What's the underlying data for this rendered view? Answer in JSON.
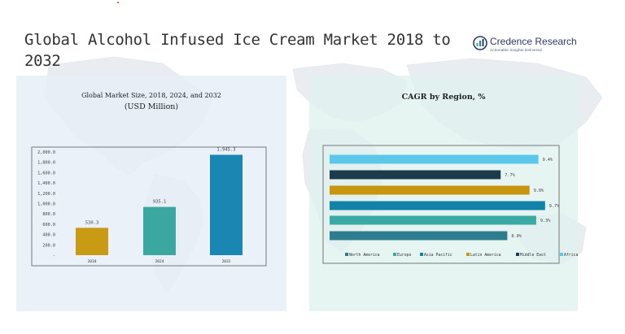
{
  "page": {
    "title": "Global Alcohol Infused Ice Cream Market 2018 to 2032"
  },
  "brand": {
    "name": "Credence Research",
    "tagline": "Actionable Insights Delivered",
    "color": "#2b3a67"
  },
  "chart_data": [
    {
      "type": "bar",
      "title": "Global Market Size, 2018, 2024, and 2032",
      "subtitle": "(USD Million)",
      "categories": [
        "2018",
        "2024",
        "2032"
      ],
      "values": [
        530.3,
        935.1,
        1945.3
      ],
      "value_labels": [
        "530.3",
        "935.1",
        "1,945.3"
      ],
      "colors": [
        "#c99a14",
        "#3aa8a0",
        "#1a87b2"
      ],
      "y_ticks": [
        "-",
        "200.0",
        "400.0",
        "600.0",
        "800.0",
        "1,000.0",
        "1,200.0",
        "1,400.0",
        "1,600.0",
        "1,800.0",
        "2,000.0"
      ],
      "ylim": [
        0,
        2000
      ],
      "grid": false,
      "xlabel": "",
      "ylabel": ""
    },
    {
      "type": "bar",
      "orientation": "horizontal",
      "title": "CAGR by Region, %",
      "categories": [
        "Africa",
        "Middle East",
        "Latin America",
        "Asia Pacific",
        "Europe",
        "North America"
      ],
      "values": [
        9.4,
        7.7,
        9.0,
        9.7,
        9.3,
        8.0
      ],
      "value_labels": [
        "9.4%",
        "7.7%",
        "9.0%",
        "9.7%",
        "9.3%",
        "8.0%"
      ],
      "colors": [
        "#5bc8ea",
        "#1c3c4c",
        "#c7950e",
        "#1282a8",
        "#3aaba4",
        "#2e7d8e"
      ],
      "legend": {
        "position": "bottom",
        "items": [
          "North America",
          "Europe",
          "Asia Pacific",
          "Latin America",
          "Middle East",
          "Africa"
        ],
        "colors": [
          "#2e7d8e",
          "#3aaba4",
          "#1282a8",
          "#c7950e",
          "#1c3c4c",
          "#5bc8ea"
        ]
      },
      "xlim": [
        0,
        10
      ]
    }
  ]
}
